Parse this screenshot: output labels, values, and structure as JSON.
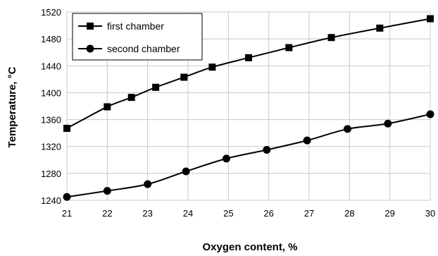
{
  "chart_data": {
    "type": "line",
    "xlabel": "Oxygen content, %",
    "ylabel": "Temperature, °C",
    "xlim": [
      21,
      30
    ],
    "ylim": [
      1240,
      1520
    ],
    "xticks": [
      21,
      22,
      23,
      24,
      25,
      26,
      27,
      28,
      29,
      30
    ],
    "yticks": [
      1240,
      1280,
      1320,
      1360,
      1400,
      1440,
      1480,
      1520
    ],
    "grid": true,
    "legend_position": "top-left",
    "series": [
      {
        "name": "first chamber",
        "marker": "square",
        "points": [
          [
            21.0,
            1347
          ],
          [
            22.0,
            1379
          ],
          [
            22.6,
            1393
          ],
          [
            23.2,
            1408
          ],
          [
            23.9,
            1423
          ],
          [
            24.6,
            1438
          ],
          [
            25.5,
            1452
          ],
          [
            26.5,
            1467
          ],
          [
            27.55,
            1482
          ],
          [
            28.75,
            1496
          ],
          [
            30.0,
            1510
          ]
        ]
      },
      {
        "name": "second chamber",
        "marker": "circle",
        "points": [
          [
            21.0,
            1245
          ],
          [
            22.0,
            1254
          ],
          [
            23.0,
            1264
          ],
          [
            23.95,
            1283
          ],
          [
            24.95,
            1302
          ],
          [
            25.95,
            1315
          ],
          [
            26.95,
            1329
          ],
          [
            27.95,
            1346
          ],
          [
            28.95,
            1354
          ],
          [
            30.0,
            1368
          ]
        ]
      }
    ]
  }
}
